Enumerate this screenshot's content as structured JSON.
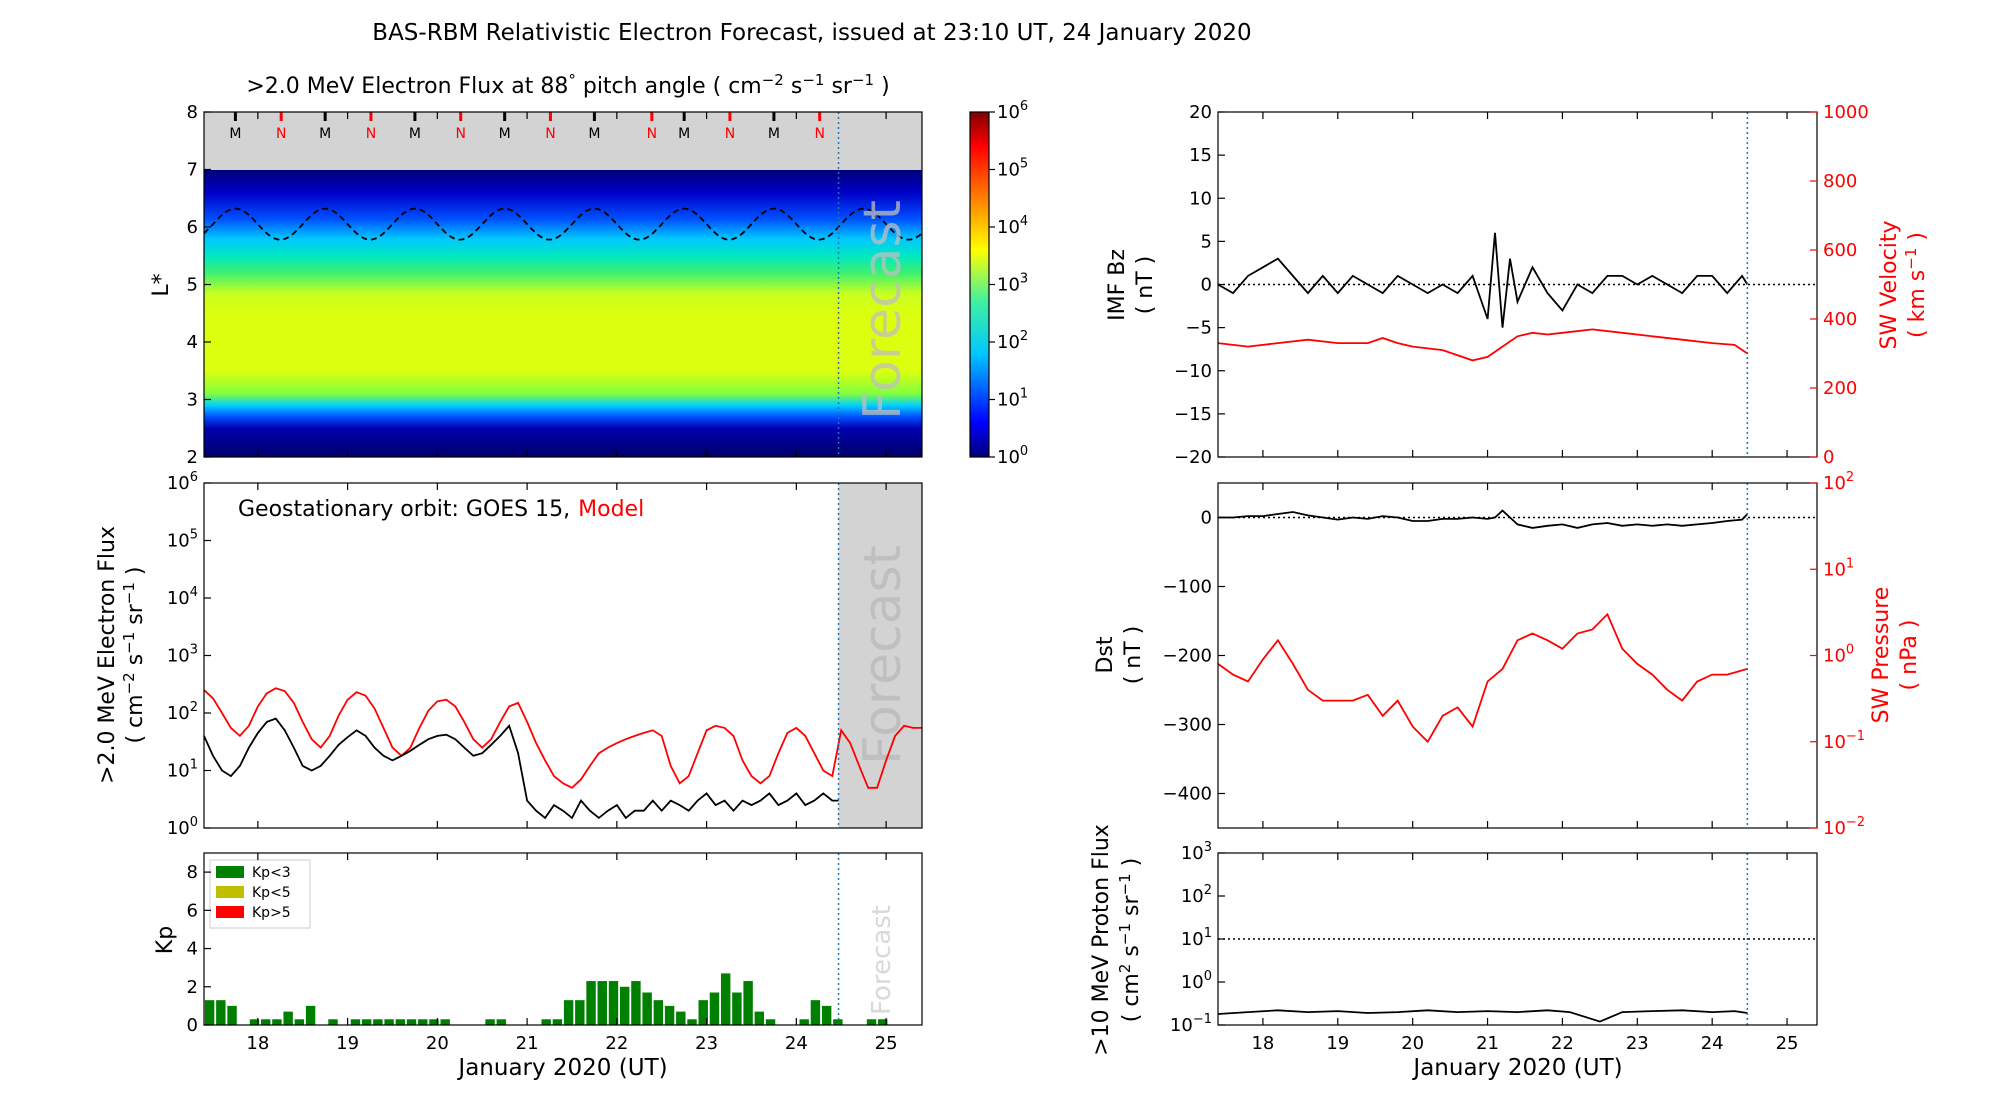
{
  "page": {
    "title": "BAS-RBM Relativistic Electron Forecast, issued at 23:10 UT, 24 January 2020",
    "axis_ticks_days": [
      "18",
      "19",
      "20",
      "21",
      "22",
      "23",
      "24",
      "25"
    ]
  },
  "chart_data": [
    {
      "id": "flux_map",
      "type": "heatmap",
      "title_prefix": ">2.0 MeV Electron Flux at 88",
      "title_degree": "°",
      "title_suffix": " pitch angle ( cm",
      "title_sup1": "−2",
      "title_s": " s",
      "title_sup2": "−1",
      "title_sr": " sr",
      "title_sup3": "−1",
      "title_end": " )",
      "ylabel": "L*",
      "xlim": [
        17.4,
        25.4
      ],
      "ylim": [
        2,
        8
      ],
      "yticks": [
        "2",
        "3",
        "4",
        "5",
        "6",
        "7",
        "8"
      ],
      "forecast_start": 24.47,
      "watermark": "Forecast",
      "markers": [
        {
          "day": 17.75,
          "label": "M",
          "color": "#000000"
        },
        {
          "day": 18.26,
          "label": "N",
          "color": "#ff0000"
        },
        {
          "day": 18.75,
          "label": "M",
          "color": "#000000"
        },
        {
          "day": 19.26,
          "label": "N",
          "color": "#ff0000"
        },
        {
          "day": 19.75,
          "label": "M",
          "color": "#000000"
        },
        {
          "day": 20.26,
          "label": "N",
          "color": "#ff0000"
        },
        {
          "day": 20.75,
          "label": "M",
          "color": "#000000"
        },
        {
          "day": 21.26,
          "label": "N",
          "color": "#ff0000"
        },
        {
          "day": 21.75,
          "label": "M",
          "color": "#000000"
        },
        {
          "day": 22.39,
          "label": "N",
          "color": "#ff0000"
        },
        {
          "day": 22.75,
          "label": "M",
          "color": "#000000"
        },
        {
          "day": 23.26,
          "label": "N",
          "color": "#ff0000"
        },
        {
          "day": 23.75,
          "label": "M",
          "color": "#000000"
        },
        {
          "day": 24.26,
          "label": "N",
          "color": "#ff0000"
        }
      ],
      "colorbar": {
        "min_exp": 0,
        "max_exp": 6,
        "labels": [
          "10",
          "10",
          "10",
          "10",
          "10",
          "10",
          "10"
        ],
        "exps": [
          "0",
          "1",
          "2",
          "3",
          "4",
          "5",
          "6"
        ]
      },
      "geo_orbit_L": {
        "mean": 6.05,
        "amplitude": 0.27
      }
    },
    {
      "id": "geo_flux",
      "type": "line",
      "ylabel_line1": ">2.0 MeV Electron Flux",
      "ylabel_line2_a": "( cm",
      "ylabel_line2_sup1": "−2",
      "ylabel_line2_b": " s",
      "ylabel_line2_sup2": "−1",
      "ylabel_line2_c": " sr",
      "ylabel_line2_sup3": "−1",
      "ylabel_line2_d": " )",
      "yscale": "log",
      "ylim_exp": [
        0,
        6
      ],
      "ytick_base": "10",
      "ytick_exps": [
        "0",
        "1",
        "2",
        "3",
        "4",
        "5",
        "6"
      ],
      "legend_label": "Geostationary orbit:   GOES 15,",
      "legend_model": "Model",
      "watermark": "Forecast",
      "series": [
        {
          "name": "GOES 15",
          "color": "#000000",
          "x": [
            17.4,
            17.5,
            17.6,
            17.7,
            17.8,
            17.9,
            18.0,
            18.1,
            18.2,
            18.3,
            18.4,
            18.5,
            18.6,
            18.7,
            18.8,
            18.9,
            19.0,
            19.1,
            19.2,
            19.3,
            19.4,
            19.5,
            19.6,
            19.7,
            19.8,
            19.9,
            20.0,
            20.1,
            20.2,
            20.3,
            20.4,
            20.5,
            20.6,
            20.7,
            20.8,
            20.9,
            21.0,
            21.1,
            21.2,
            21.3,
            21.4,
            21.5,
            21.6,
            21.7,
            21.8,
            21.9,
            22.0,
            22.1,
            22.2,
            22.3,
            22.4,
            22.5,
            22.6,
            22.7,
            22.8,
            22.9,
            23.0,
            23.1,
            23.2,
            23.3,
            23.4,
            23.5,
            23.6,
            23.7,
            23.8,
            23.9,
            24.0,
            24.1,
            24.2,
            24.3,
            24.4,
            24.47
          ],
          "y": [
            40,
            18,
            10,
            8,
            12,
            25,
            45,
            70,
            80,
            50,
            25,
            12,
            10,
            12,
            18,
            28,
            38,
            50,
            40,
            25,
            18,
            15,
            18,
            22,
            28,
            35,
            40,
            42,
            35,
            25,
            18,
            20,
            28,
            40,
            60,
            20,
            3,
            2,
            1.5,
            2.5,
            2,
            1.5,
            3,
            2,
            1.5,
            2,
            2.5,
            1.5,
            2,
            2,
            3,
            2,
            3,
            2.5,
            2,
            3,
            4,
            2.5,
            3,
            2,
            3,
            2.5,
            3,
            4,
            2.5,
            3,
            4,
            2.5,
            3,
            4,
            3,
            3
          ]
        },
        {
          "name": "Model",
          "color": "#ff0000",
          "x": [
            17.4,
            17.5,
            17.6,
            17.7,
            17.8,
            17.9,
            18.0,
            18.1,
            18.2,
            18.3,
            18.4,
            18.5,
            18.6,
            18.7,
            18.8,
            18.9,
            19.0,
            19.1,
            19.2,
            19.3,
            19.4,
            19.5,
            19.6,
            19.7,
            19.8,
            19.9,
            20.0,
            20.1,
            20.2,
            20.3,
            20.4,
            20.5,
            20.6,
            20.7,
            20.8,
            20.9,
            21.0,
            21.1,
            21.2,
            21.3,
            21.4,
            21.5,
            21.6,
            21.7,
            21.8,
            21.9,
            22.0,
            22.1,
            22.2,
            22.3,
            22.4,
            22.5,
            22.6,
            22.7,
            22.8,
            22.9,
            23.0,
            23.1,
            23.2,
            23.3,
            23.4,
            23.5,
            23.6,
            23.7,
            23.8,
            23.9,
            24.0,
            24.1,
            24.2,
            24.3,
            24.4,
            24.5,
            24.6,
            24.7,
            24.8,
            24.9,
            25.0,
            25.1,
            25.2,
            25.3,
            25.4
          ],
          "y": [
            250,
            180,
            100,
            55,
            40,
            60,
            130,
            220,
            270,
            240,
            150,
            70,
            35,
            25,
            40,
            90,
            170,
            230,
            200,
            120,
            55,
            25,
            18,
            25,
            55,
            110,
            160,
            170,
            130,
            70,
            35,
            25,
            35,
            70,
            130,
            150,
            70,
            30,
            15,
            8,
            6,
            5,
            7,
            12,
            20,
            25,
            30,
            35,
            40,
            45,
            50,
            40,
            12,
            6,
            8,
            20,
            50,
            60,
            55,
            40,
            15,
            8,
            6,
            8,
            20,
            45,
            55,
            40,
            20,
            10,
            8,
            50,
            30,
            12,
            5,
            5,
            15,
            40,
            60,
            55,
            55
          ]
        }
      ],
      "forecast_start": 24.47
    },
    {
      "id": "kp",
      "type": "bar",
      "ylabel": "Kp",
      "ylim": [
        0,
        9
      ],
      "yticks": [
        "0",
        "2",
        "4",
        "6",
        "8"
      ],
      "xlabel": "January 2020 (UT)",
      "watermark": "Forecast",
      "legend": [
        {
          "label": "Kp<3",
          "color": "#008000"
        },
        {
          "label": "Kp<5",
          "color": "#bfbf00"
        },
        {
          "label": "Kp>5",
          "color": "#ff0000"
        }
      ],
      "bar_start": 17.4,
      "bar_width": 0.125,
      "values": [
        1.3,
        1.3,
        1.0,
        0.0,
        0.3,
        0.3,
        0.3,
        0.7,
        0.3,
        1.0,
        0.0,
        0.3,
        0.0,
        0.3,
        0.3,
        0.3,
        0.3,
        0.3,
        0.3,
        0.3,
        0.3,
        0.3,
        0.0,
        0.0,
        0.0,
        0.3,
        0.3,
        0.0,
        0.0,
        0.0,
        0.3,
        0.3,
        1.3,
        1.3,
        2.3,
        2.3,
        2.3,
        2.0,
        2.3,
        1.7,
        1.3,
        1.0,
        0.7,
        0.3,
        1.3,
        1.7,
        2.7,
        1.7,
        2.3,
        0.7,
        0.3,
        0.0,
        0.0,
        0.3,
        1.3,
        1.0,
        0.3,
        0.0,
        0.0,
        0.3,
        0.3,
        0.0,
        0.0
      ],
      "forecast_start": 24.47
    },
    {
      "id": "imf_sw",
      "type": "line",
      "ylabel_line1": "IMF Bz",
      "ylabel_line2": "( nT )",
      "ylim": [
        -20,
        20
      ],
      "yticks": [
        "−20",
        "−15",
        "−10",
        "−5",
        "0",
        "5",
        "10",
        "15",
        "20"
      ],
      "right_ylabel_line1": "SW Velocity",
      "right_ylabel_line2_a": "( km s",
      "right_ylabel_line2_sup": "−1",
      "right_ylabel_line2_b": " )",
      "right_ylim": [
        0,
        1000
      ],
      "right_yticks": [
        "0",
        "200",
        "400",
        "600",
        "800",
        "1000"
      ],
      "series": [
        {
          "name": "IMF Bz",
          "color": "#000000",
          "x": [
            17.4,
            17.6,
            17.8,
            18.0,
            18.2,
            18.4,
            18.6,
            18.8,
            19.0,
            19.2,
            19.4,
            19.6,
            19.8,
            20.0,
            20.2,
            20.4,
            20.6,
            20.8,
            21.0,
            21.1,
            21.2,
            21.3,
            21.4,
            21.6,
            21.8,
            22.0,
            22.2,
            22.4,
            22.6,
            22.8,
            23.0,
            23.2,
            23.4,
            23.6,
            23.8,
            24.0,
            24.2,
            24.4,
            24.47
          ],
          "y": [
            0,
            -1,
            1,
            2,
            3,
            1,
            -1,
            1,
            -1,
            1,
            0,
            -1,
            1,
            0,
            -1,
            0,
            -1,
            1,
            -4,
            6,
            -5,
            3,
            -2,
            2,
            -1,
            -3,
            0,
            -1,
            1,
            1,
            0,
            1,
            0,
            -1,
            1,
            1,
            -1,
            1,
            0
          ]
        },
        {
          "name": "SW Velocity",
          "color": "#ff0000",
          "x": [
            17.4,
            17.8,
            18.2,
            18.6,
            19.0,
            19.4,
            19.6,
            19.8,
            20.0,
            20.4,
            20.8,
            21.0,
            21.2,
            21.4,
            21.6,
            21.8,
            22.0,
            22.4,
            22.8,
            23.2,
            23.6,
            24.0,
            24.3,
            24.47
          ],
          "y": [
            330,
            320,
            330,
            340,
            330,
            330,
            345,
            330,
            320,
            310,
            280,
            290,
            320,
            350,
            360,
            355,
            360,
            370,
            360,
            350,
            340,
            330,
            325,
            300
          ]
        }
      ],
      "forecast_start": 24.47
    },
    {
      "id": "dst_pressure",
      "type": "line",
      "ylabel_line1": "Dst",
      "ylabel_line2": "( nT )",
      "ylim": [
        -450,
        50
      ],
      "yticks": [
        "−400",
        "−300",
        "−200",
        "−100",
        "0"
      ],
      "right_ylabel_line1": "SW Pressure",
      "right_ylabel_line2": "( nPa )",
      "right_ylim_exp": [
        -2,
        2
      ],
      "right_ytick_base": "10",
      "right_ytick_exps": [
        "−2",
        "−1",
        "0",
        "1",
        "2"
      ],
      "series": [
        {
          "name": "Dst",
          "color": "#000000",
          "x": [
            17.4,
            17.6,
            17.8,
            18.0,
            18.2,
            18.4,
            18.6,
            18.8,
            19.0,
            19.2,
            19.4,
            19.6,
            19.8,
            20.0,
            20.2,
            20.4,
            20.6,
            20.8,
            21.0,
            21.1,
            21.2,
            21.3,
            21.4,
            21.6,
            21.8,
            22.0,
            22.2,
            22.4,
            22.6,
            22.8,
            23.0,
            23.2,
            23.4,
            23.6,
            23.8,
            24.0,
            24.2,
            24.4,
            24.47
          ],
          "y": [
            0,
            0,
            2,
            2,
            5,
            8,
            3,
            0,
            -3,
            0,
            -2,
            2,
            0,
            -5,
            -5,
            -2,
            -2,
            0,
            -2,
            0,
            10,
            0,
            -10,
            -15,
            -12,
            -10,
            -15,
            -10,
            -8,
            -12,
            -10,
            -12,
            -10,
            -12,
            -10,
            -8,
            -5,
            -3,
            5
          ]
        },
        {
          "name": "SW Pressure",
          "color": "#ff0000",
          "x": [
            17.4,
            17.6,
            17.8,
            18.0,
            18.2,
            18.4,
            18.6,
            18.8,
            19.0,
            19.2,
            19.4,
            19.6,
            19.8,
            20.0,
            20.2,
            20.4,
            20.6,
            20.8,
            21.0,
            21.2,
            21.4,
            21.6,
            21.8,
            22.0,
            22.2,
            22.4,
            22.6,
            22.8,
            23.0,
            23.2,
            23.4,
            23.6,
            23.8,
            24.0,
            24.2,
            24.47
          ],
          "y": [
            0.8,
            0.6,
            0.5,
            0.9,
            1.5,
            0.8,
            0.4,
            0.3,
            0.3,
            0.3,
            0.35,
            0.2,
            0.3,
            0.15,
            0.1,
            0.2,
            0.25,
            0.15,
            0.5,
            0.7,
            1.5,
            1.8,
            1.5,
            1.2,
            1.8,
            2.0,
            3.0,
            1.2,
            0.8,
            0.6,
            0.4,
            0.3,
            0.5,
            0.6,
            0.6,
            0.7
          ]
        }
      ],
      "forecast_start": 24.47
    },
    {
      "id": "proton",
      "type": "line",
      "ylabel_line1": ">10 MeV Proton Flux",
      "ylabel_line2_a": "( cm",
      "ylabel_line2_sup1": "2",
      "ylabel_line2_b": " s",
      "ylabel_line2_sup2": "−1",
      "ylabel_line2_c": " sr",
      "ylabel_line2_sup3": "−1",
      "ylabel_line2_d": " )",
      "yscale": "log",
      "ylim_exp": [
        -1,
        3
      ],
      "ytick_base": "10",
      "ytick_exps": [
        "−1",
        "0",
        "1",
        "2",
        "3"
      ],
      "xlabel": "January 2020 (UT)",
      "threshold": 10,
      "series": [
        {
          "name": "Proton flux",
          "color": "#000000",
          "x": [
            17.4,
            17.8,
            18.2,
            18.6,
            19.0,
            19.4,
            19.8,
            20.2,
            20.6,
            21.0,
            21.4,
            21.8,
            22.1,
            22.5,
            22.8,
            23.2,
            23.6,
            24.0,
            24.3,
            24.47
          ],
          "y": [
            0.18,
            0.2,
            0.22,
            0.2,
            0.21,
            0.19,
            0.2,
            0.22,
            0.2,
            0.21,
            0.2,
            0.22,
            0.2,
            0.12,
            0.2,
            0.21,
            0.22,
            0.2,
            0.21,
            0.19
          ]
        }
      ],
      "forecast_start": 24.47
    }
  ]
}
